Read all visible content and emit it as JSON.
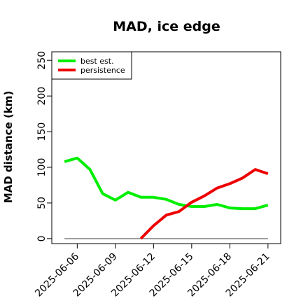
{
  "chart_data": {
    "type": "line",
    "title": "MAD, ice edge",
    "xlabel": "",
    "ylabel": "MAD distance (km)",
    "x": [
      "2025-06-05",
      "2025-06-06",
      "2025-06-07",
      "2025-06-08",
      "2025-06-09",
      "2025-06-10",
      "2025-06-11",
      "2025-06-12",
      "2025-06-13",
      "2025-06-14",
      "2025-06-15",
      "2025-06-16",
      "2025-06-17",
      "2025-06-18",
      "2025-06-19",
      "2025-06-20",
      "2025-06-21"
    ],
    "xticks": [
      "2025-06-06",
      "2025-06-09",
      "2025-06-12",
      "2025-06-15",
      "2025-06-18",
      "2025-06-21"
    ],
    "yticks": [
      0,
      50,
      100,
      150,
      200,
      250
    ],
    "ylim": [
      -7,
      262
    ],
    "xlim": [
      "2025-06-04",
      "2025-06-22"
    ],
    "series": [
      {
        "name": "best est.",
        "color": "#00ee00",
        "values": [
          108,
          113,
          97,
          63,
          54,
          65,
          58,
          58,
          55,
          48,
          45,
          45,
          48,
          43,
          42,
          42,
          47
        ]
      },
      {
        "name": "persistence",
        "color": "#ee0000",
        "values": [
          null,
          null,
          null,
          null,
          null,
          null,
          0,
          18,
          33,
          38,
          51,
          60,
          71,
          77,
          85,
          97,
          91
        ]
      }
    ],
    "reference_line": {
      "y": 0,
      "color": "#888888"
    },
    "legend": "top-left",
    "grid": false
  }
}
